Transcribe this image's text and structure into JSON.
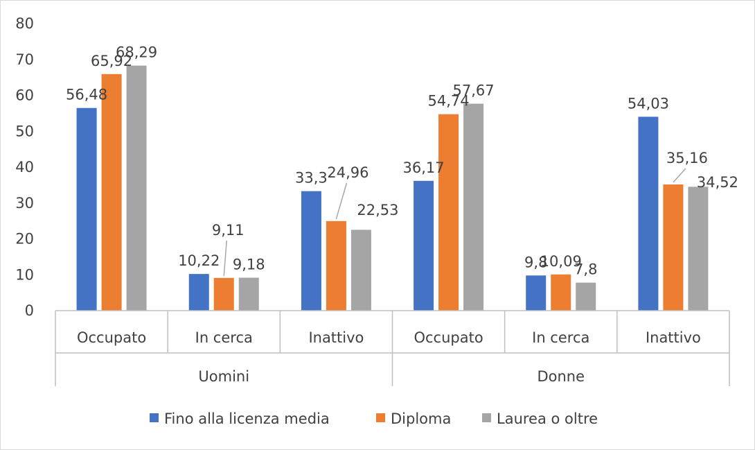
{
  "chart_data": {
    "type": "bar",
    "title": "",
    "xlabel": "",
    "ylabel": "",
    "ylim": [
      0,
      80
    ],
    "yticks": [
      "0",
      "10",
      "20",
      "30",
      "40",
      "50",
      "60",
      "70",
      "80"
    ],
    "grid": false,
    "legend_position": "bottom",
    "groups": [
      "Uomini",
      "Donne"
    ],
    "categories": [
      "Occupato",
      "In cerca",
      "Inattivo",
      "Occupato",
      "In cerca",
      "Inattivo"
    ],
    "series": [
      {
        "name": "Fino alla licenza media",
        "color": "#4472c4",
        "values": [
          56.48,
          10.22,
          33.3,
          36.17,
          9.8,
          54.03
        ],
        "labels": [
          "56,48",
          "10,22",
          "33,3",
          "36,17",
          "9,8",
          "54,03"
        ]
      },
      {
        "name": "Diploma",
        "color": "#ed7d31",
        "values": [
          65.92,
          9.11,
          24.96,
          54.74,
          10.09,
          35.16
        ],
        "labels": [
          "65,92",
          "9,11",
          "24,96",
          "54,74",
          "10,09",
          "35,16"
        ]
      },
      {
        "name": "Laurea o oltre",
        "color": "#a5a5a5",
        "values": [
          68.29,
          9.18,
          22.53,
          57.67,
          7.8,
          34.52
        ],
        "labels": [
          "68,29",
          "9,18",
          "22,53",
          "57,67",
          "7,8",
          "34,52"
        ]
      }
    ]
  }
}
